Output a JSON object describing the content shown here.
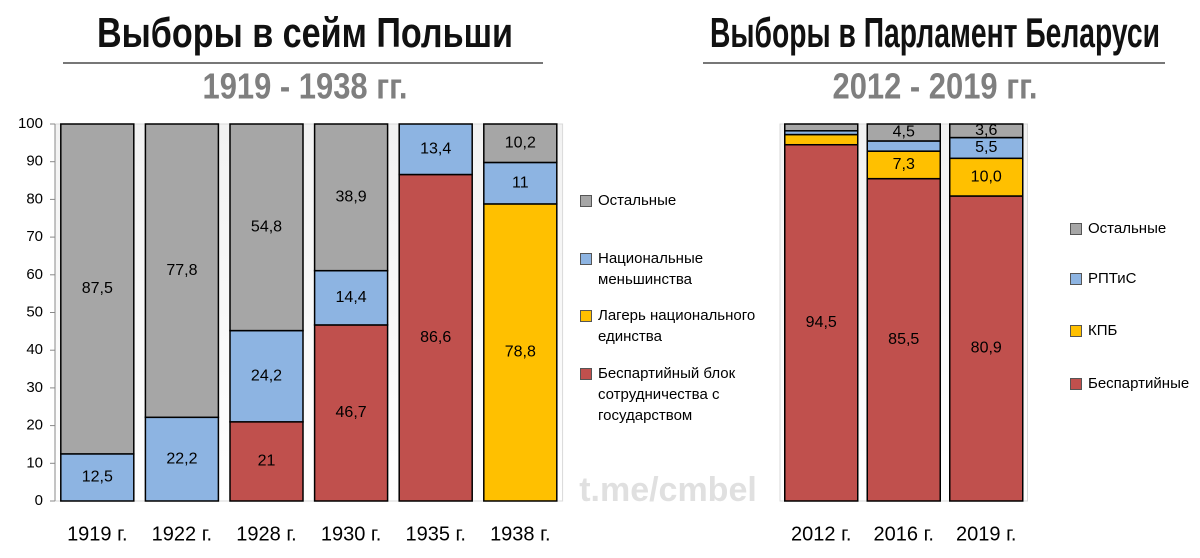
{
  "chart_data": [
    {
      "type": "bar",
      "stacked": true,
      "title": "Выборы в сейм Польши",
      "subtitle": "1919 - 1938 гг.",
      "categories": [
        "1919 г.",
        "1922 г.",
        "1928 г.",
        "1930 г.",
        "1935 г.",
        "1938 г."
      ],
      "series": [
        {
          "name": "Беспартийный блок сотрудничества с государством",
          "color": "#c0504d",
          "values": [
            null,
            null,
            21,
            46.7,
            86.6,
            null
          ],
          "value_labels": [
            null,
            null,
            "21",
            "46,7",
            "86,6",
            null
          ]
        },
        {
          "name": "Лагерь национального единства",
          "color": "#ffc000",
          "values": [
            null,
            null,
            null,
            null,
            null,
            78.8
          ],
          "value_labels": [
            null,
            null,
            null,
            null,
            null,
            "78,8"
          ]
        },
        {
          "name": "Национальные меньшинства",
          "color": "#8db4e2",
          "values": [
            12.5,
            22.2,
            24.2,
            14.4,
            13.4,
            11
          ],
          "value_labels": [
            "12,5",
            "22,2",
            "24,2",
            "14,4",
            "13,4",
            "11"
          ]
        },
        {
          "name": "Остальные",
          "color": "#a6a6a6",
          "values": [
            87.5,
            77.8,
            54.8,
            38.9,
            null,
            10.2
          ],
          "value_labels": [
            "87,5",
            "77,8",
            "54,8",
            "38,9",
            null,
            "10,2"
          ]
        }
      ],
      "ylim": [
        0,
        100
      ],
      "yticks": [
        0,
        10,
        20,
        30,
        40,
        50,
        60,
        70,
        80,
        90,
        100
      ],
      "legend": "right",
      "watermark": "t.me/cmbel"
    },
    {
      "type": "bar",
      "stacked": true,
      "title": "Выборы в Парламент Беларуси",
      "subtitle": "2012 - 2019 гг.",
      "categories": [
        "2012 г.",
        "2016 г.",
        "2019 г."
      ],
      "series": [
        {
          "name": "Беспартийные",
          "color": "#c0504d",
          "values": [
            94.5,
            85.5,
            80.9
          ],
          "value_labels": [
            "94,5",
            "85,5",
            "80,9"
          ]
        },
        {
          "name": "КПБ",
          "color": "#ffc000",
          "values": [
            2.7,
            7.3,
            10.0
          ],
          "value_labels": [
            null,
            "7,3",
            "10,0"
          ]
        },
        {
          "name": "РПТиС",
          "color": "#8db4e2",
          "values": [
            1.0,
            2.7,
            5.5
          ],
          "value_labels": [
            null,
            null,
            "5,5"
          ]
        },
        {
          "name": "Остальные",
          "color": "#a6a6a6",
          "values": [
            1.8,
            4.5,
            3.6
          ],
          "value_labels": [
            null,
            "4,5",
            "3,6"
          ]
        }
      ],
      "ylim": [
        0,
        100
      ],
      "legend": "right"
    }
  ]
}
